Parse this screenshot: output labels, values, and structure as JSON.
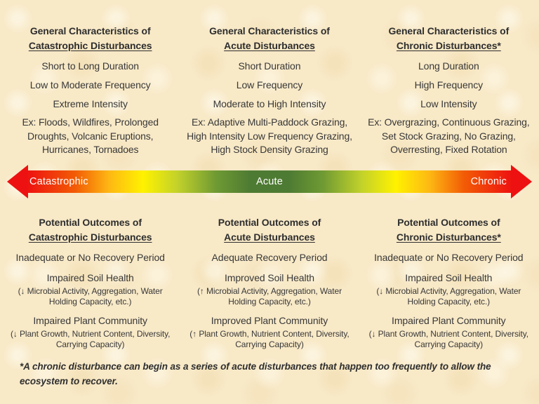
{
  "colors": {
    "background": "#f8e9c7",
    "text": "#383838",
    "arrow_red": "#ee1111",
    "arrow_orange": "#f25c05",
    "arrow_yellow": "#fff200",
    "arrow_green": "#4e7b33",
    "arrow_label_text": "#ffffff"
  },
  "top": {
    "columns": [
      {
        "title_line1": "General Characteristics of",
        "title_line2": "Catastrophic Disturbances",
        "duration": "Short to Long Duration",
        "frequency": "Low to Moderate Frequency",
        "intensity": "Extreme Intensity",
        "example": "Ex: Floods, Wildfires, Prolonged Droughts, Volcanic Eruptions, Hurricanes, Tornadoes"
      },
      {
        "title_line1": "General Characteristics of",
        "title_line2": "Acute Disturbances",
        "duration": "Short Duration",
        "frequency": "Low Frequency",
        "intensity": "Moderate to High Intensity",
        "example": "Ex: Adaptive Multi-Paddock Grazing, High Intensity Low Frequency Grazing, High Stock Density Grazing"
      },
      {
        "title_line1": "General Characteristics of",
        "title_line2": "Chronic Disturbances*",
        "duration": "Long Duration",
        "frequency": "High Frequency",
        "intensity": "Low Intensity",
        "example": "Ex: Overgrazing, Continuous Grazing, Set Stock Grazing, No Grazing, Overresting, Fixed Rotation"
      }
    ]
  },
  "arrow": {
    "left_label": "Catastrophic",
    "center_label": "Acute",
    "right_label": "Chronic"
  },
  "bottom": {
    "columns": [
      {
        "title_line1": "Potential Outcomes of",
        "title_line2": "Catastrophic Disturbances",
        "recovery": "Inadequate or No Recovery Period",
        "soil_title": "Impaired Soil Health",
        "soil_detail": "(↓ Microbial Activity, Aggregation, Water Holding Capacity, etc.)",
        "plant_title": "Impaired Plant Community",
        "plant_detail": "(↓ Plant Growth, Nutrient Content, Diversity, Carrying Capacity)"
      },
      {
        "title_line1": "Potential Outcomes of",
        "title_line2": "Acute Disturbances",
        "recovery": "Adequate Recovery Period",
        "soil_title": "Improved Soil Health",
        "soil_detail": "(↑ Microbial Activity, Aggregation, Water Holding Capacity, etc.)",
        "plant_title": "Improved Plant Community",
        "plant_detail": "(↑ Plant Growth, Nutrient Content, Diversity, Carrying Capacity)"
      },
      {
        "title_line1": "Potential Outcomes of",
        "title_line2": "Chronic Disturbances*",
        "recovery": "Inadequate or No Recovery Period",
        "soil_title": "Impaired Soil Health",
        "soil_detail": "(↓ Microbial Activity, Aggregation, Water Holding Capacity, etc.)",
        "plant_title": "Impaired Plant Community",
        "plant_detail": "(↓ Plant Growth, Nutrient Content, Diversity, Carrying Capacity)"
      }
    ]
  },
  "footnote": "*A chronic disturbance can begin as a series of acute disturbances that happen too frequently to allow the ecosystem to recover."
}
